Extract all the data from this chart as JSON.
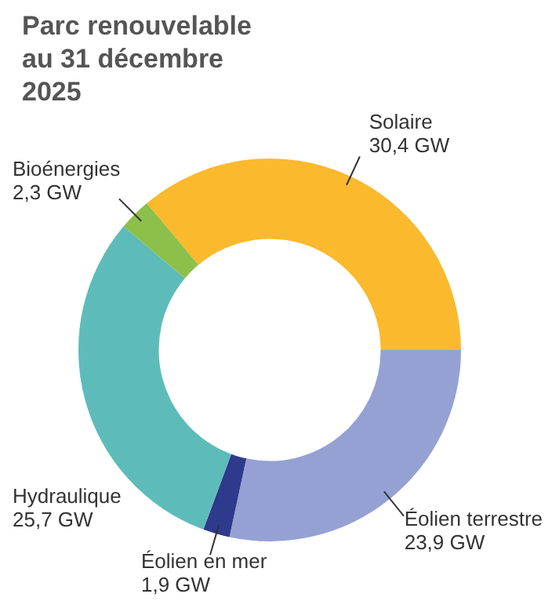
{
  "chart_data": {
    "type": "donut",
    "title": "Parc renouvelable au 31 décembre 2025",
    "categories": [
      "Solaire",
      "Éolien terrestre",
      "Éolien en mer",
      "Hydraulique",
      "Bioénergies"
    ],
    "values": [
      30.4,
      23.9,
      1.9,
      25.7,
      2.3
    ],
    "value_labels": [
      "30,4 GW",
      "23,9 GW",
      "1,9 GW",
      "25,7 GW",
      "2,3 GW"
    ],
    "colors": [
      "#fbb92d",
      "#95a1d3",
      "#2e3a8c",
      "#5dbcb9",
      "#8cc04b"
    ],
    "legend": false
  }
}
